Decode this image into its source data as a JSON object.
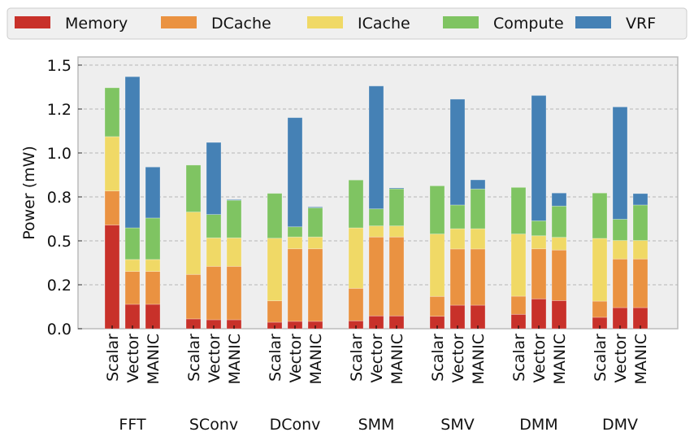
{
  "chart_data": {
    "type": "bar",
    "stacked": true,
    "title": "",
    "xlabel": "",
    "ylabel": "Power (mW)",
    "ylim": [
      0,
      1.546
    ],
    "yticks": [
      0,
      0.25,
      0.5,
      0.75,
      1.0,
      1.25,
      1.5
    ],
    "ytick_labels": [
      "0.0",
      "0.2",
      "0.5",
      "0.8",
      "1.0",
      "1.2",
      "1.5"
    ],
    "grid": true,
    "legend_placement": "top",
    "groups": [
      "FFT",
      "SConv",
      "DConv",
      "SMM",
      "SMV",
      "DMM",
      "DMV"
    ],
    "configs": [
      "Scalar",
      "Vector",
      "MANIC"
    ],
    "series": [
      {
        "name": "Memory",
        "color": "#c8312a",
        "values": [
          [
            0.59,
            0.139,
            0.139
          ],
          [
            0.056,
            0.051,
            0.051
          ],
          [
            0.037,
            0.042,
            0.042
          ],
          [
            0.045,
            0.073,
            0.073
          ],
          [
            0.071,
            0.134,
            0.134
          ],
          [
            0.082,
            0.17,
            0.16
          ],
          [
            0.065,
            0.12,
            0.12
          ]
        ]
      },
      {
        "name": "DCache",
        "color": "#ea9241",
        "values": [
          [
            0.194,
            0.187,
            0.187
          ],
          [
            0.253,
            0.304,
            0.304
          ],
          [
            0.122,
            0.413,
            0.413
          ],
          [
            0.185,
            0.449,
            0.449
          ],
          [
            0.113,
            0.32,
            0.32
          ],
          [
            0.103,
            0.285,
            0.288
          ],
          [
            0.092,
            0.277,
            0.277
          ]
        ]
      },
      {
        "name": "ICache",
        "color": "#f0d966",
        "values": [
          [
            0.309,
            0.068,
            0.068
          ],
          [
            0.355,
            0.162,
            0.162
          ],
          [
            0.356,
            0.067,
            0.067
          ],
          [
            0.344,
            0.063,
            0.063
          ],
          [
            0.355,
            0.115,
            0.115
          ],
          [
            0.354,
            0.074,
            0.072
          ],
          [
            0.357,
            0.105,
            0.105
          ]
        ]
      },
      {
        "name": "Compute",
        "color": "#7fc462",
        "values": [
          [
            0.278,
            0.18,
            0.236
          ],
          [
            0.267,
            0.133,
            0.214
          ],
          [
            0.255,
            0.058,
            0.166
          ],
          [
            0.272,
            0.097,
            0.211
          ],
          [
            0.274,
            0.135,
            0.226
          ],
          [
            0.265,
            0.085,
            0.178
          ],
          [
            0.258,
            0.121,
            0.202
          ]
        ]
      },
      {
        "name": "VRF",
        "color": "#4581b5",
        "values": [
          [
            0,
            0.86,
            0.29
          ],
          [
            0,
            0.41,
            0.004
          ],
          [
            0,
            0.621,
            0.005
          ],
          [
            0,
            0.699,
            0.005
          ],
          [
            0,
            0.602,
            0.052
          ],
          [
            0,
            0.713,
            0.074
          ],
          [
            0,
            0.639,
            0.065
          ]
        ]
      }
    ]
  }
}
